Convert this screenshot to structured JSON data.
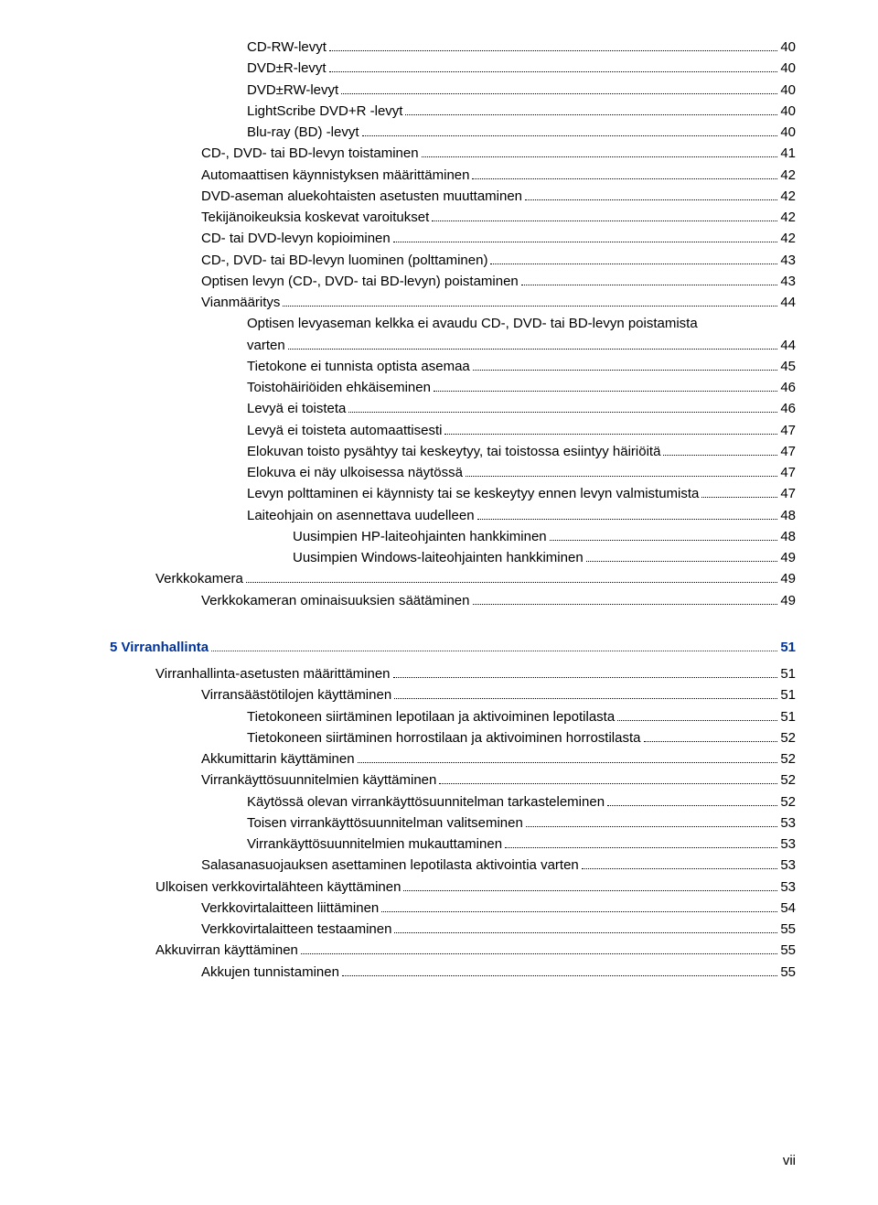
{
  "toc": [
    {
      "indent": 4,
      "label": "CD-RW-levyt",
      "page": "40",
      "heading": false
    },
    {
      "indent": 4,
      "label": "DVD±R-levyt",
      "page": "40",
      "heading": false
    },
    {
      "indent": 4,
      "label": "DVD±RW-levyt",
      "page": "40",
      "heading": false
    },
    {
      "indent": 4,
      "label": "LightScribe DVD+R -levyt",
      "page": "40",
      "heading": false
    },
    {
      "indent": 4,
      "label": "Blu-ray (BD) -levyt",
      "page": "40",
      "heading": false
    },
    {
      "indent": 3,
      "label": "CD-, DVD- tai BD-levyn toistaminen",
      "page": "41",
      "heading": false
    },
    {
      "indent": 3,
      "label": "Automaattisen käynnistyksen määrittäminen",
      "page": "42",
      "heading": false
    },
    {
      "indent": 3,
      "label": "DVD-aseman aluekohtaisten asetusten muuttaminen",
      "page": "42",
      "heading": false
    },
    {
      "indent": 3,
      "label": "Tekijänoikeuksia koskevat varoitukset",
      "page": "42",
      "heading": false
    },
    {
      "indent": 3,
      "label": "CD- tai DVD-levyn kopioiminen",
      "page": "42",
      "heading": false
    },
    {
      "indent": 3,
      "label": "CD-, DVD- tai BD-levyn luominen (polttaminen)",
      "page": "43",
      "heading": false
    },
    {
      "indent": 3,
      "label": "Optisen levyn (CD-, DVD- tai BD-levyn) poistaminen",
      "page": "43",
      "heading": false
    },
    {
      "indent": 3,
      "label": "Vianmääritys",
      "page": "44",
      "heading": false
    },
    {
      "indent": 4,
      "label": "Optisen levyaseman kelkka ei avaudu CD-, DVD- tai BD-levyn poistamista varten",
      "page": "44",
      "heading": false,
      "wrap": true
    },
    {
      "indent": 4,
      "label": "Tietokone ei tunnista optista asemaa",
      "page": "45",
      "heading": false
    },
    {
      "indent": 4,
      "label": "Toistohäiriöiden ehkäiseminen",
      "page": "46",
      "heading": false
    },
    {
      "indent": 4,
      "label": "Levyä ei toisteta",
      "page": "46",
      "heading": false
    },
    {
      "indent": 4,
      "label": "Levyä ei toisteta automaattisesti",
      "page": "47",
      "heading": false
    },
    {
      "indent": 4,
      "label": "Elokuvan toisto pysähtyy tai keskeytyy, tai toistossa esiintyy häiriöitä",
      "page": "47",
      "heading": false
    },
    {
      "indent": 4,
      "label": "Elokuva ei näy ulkoisessa näytössä",
      "page": "47",
      "heading": false
    },
    {
      "indent": 4,
      "label": "Levyn polttaminen ei käynnisty tai se keskeytyy ennen levyn valmistumista",
      "page": "47",
      "heading": false
    },
    {
      "indent": 4,
      "label": "Laiteohjain on asennettava uudelleen",
      "page": "48",
      "heading": false
    },
    {
      "indent": 5,
      "label": "Uusimpien HP-laiteohjainten hankkiminen",
      "page": "48",
      "heading": false
    },
    {
      "indent": 5,
      "label": "Uusimpien Windows-laiteohjainten hankkiminen",
      "page": "49",
      "heading": false
    },
    {
      "indent": 2,
      "label": "Verkkokamera",
      "page": "49",
      "heading": false
    },
    {
      "indent": 3,
      "label": "Verkkokameran ominaisuuksien säätäminen",
      "page": "49",
      "heading": false
    },
    {
      "indent": 1,
      "label": "5  Virranhallinta",
      "page": "51",
      "heading": true
    },
    {
      "indent": 2,
      "label": "Virranhallinta-asetusten määrittäminen",
      "page": "51",
      "heading": false
    },
    {
      "indent": 3,
      "label": "Virransäästötilojen käyttäminen",
      "page": "51",
      "heading": false
    },
    {
      "indent": 4,
      "label": "Tietokoneen siirtäminen lepotilaan ja aktivoiminen lepotilasta",
      "page": "51",
      "heading": false
    },
    {
      "indent": 4,
      "label": "Tietokoneen siirtäminen horrostilaan ja aktivoiminen horrostilasta",
      "page": "52",
      "heading": false
    },
    {
      "indent": 3,
      "label": "Akkumittarin käyttäminen",
      "page": "52",
      "heading": false
    },
    {
      "indent": 3,
      "label": "Virrankäyttösuunnitelmien käyttäminen",
      "page": "52",
      "heading": false
    },
    {
      "indent": 4,
      "label": "Käytössä olevan virrankäyttösuunnitelman tarkasteleminen",
      "page": "52",
      "heading": false
    },
    {
      "indent": 4,
      "label": "Toisen virrankäyttösuunnitelman valitseminen",
      "page": "53",
      "heading": false
    },
    {
      "indent": 4,
      "label": "Virrankäyttösuunnitelmien mukauttaminen",
      "page": "53",
      "heading": false
    },
    {
      "indent": 3,
      "label": "Salasanasuojauksen asettaminen lepotilasta aktivointia varten",
      "page": "53",
      "heading": false
    },
    {
      "indent": 2,
      "label": "Ulkoisen verkkovirtalähteen käyttäminen",
      "page": "53",
      "heading": false
    },
    {
      "indent": 3,
      "label": "Verkkovirtalaitteen liittäminen",
      "page": "54",
      "heading": false
    },
    {
      "indent": 3,
      "label": "Verkkovirtalaitteen testaaminen",
      "page": "55",
      "heading": false
    },
    {
      "indent": 2,
      "label": "Akkuvirran käyttäminen",
      "page": "55",
      "heading": false
    },
    {
      "indent": 3,
      "label": "Akkujen tunnistaminen",
      "page": "55",
      "heading": false
    }
  ],
  "pageNumber": "vii"
}
